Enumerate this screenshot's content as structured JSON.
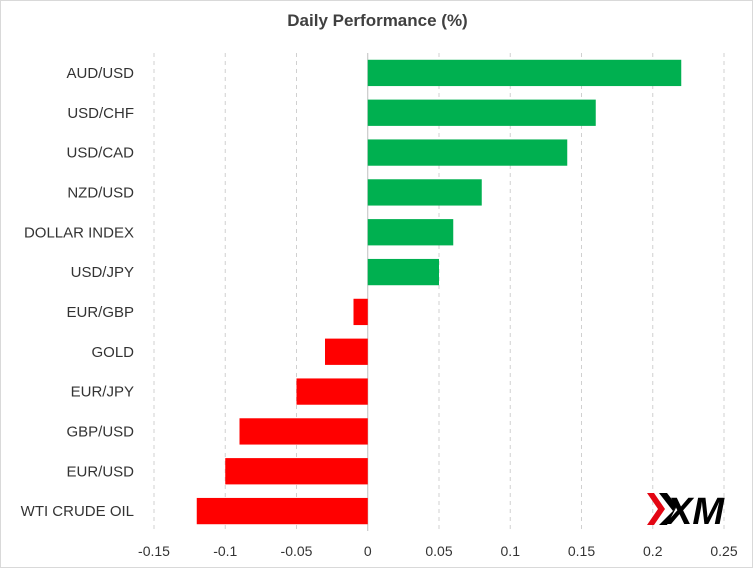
{
  "chart_data": {
    "type": "bar",
    "orientation": "horizontal",
    "title": "Daily Performance  (%)",
    "categories": [
      "AUD/USD",
      "USD/CHF",
      "USD/CAD",
      "NZD/USD",
      "DOLLAR INDEX",
      "USD/JPY",
      "EUR/GBP",
      "GOLD",
      "EUR/JPY",
      "GBP/USD",
      "EUR/USD",
      "WTI CRUDE OIL"
    ],
    "values": [
      0.22,
      0.16,
      0.14,
      0.08,
      0.06,
      0.05,
      -0.01,
      -0.03,
      -0.05,
      -0.09,
      -0.1,
      -0.12
    ],
    "xlim": [
      -0.15,
      0.25
    ],
    "xticks": [
      "-0.15",
      "-0.1",
      "-0.05",
      "0",
      "0.05",
      "0.1",
      "0.15",
      "0.2",
      "0.25"
    ],
    "xtick_values": [
      -0.15,
      -0.1,
      -0.05,
      0,
      0.05,
      0.1,
      0.15,
      0.2,
      0.25
    ],
    "grid": "vertical-dashed",
    "colors": {
      "positive": "#00b050",
      "negative": "#ff0000"
    }
  },
  "logo": {
    "text": "XM",
    "color": "#000000",
    "accent": "#e30613"
  }
}
